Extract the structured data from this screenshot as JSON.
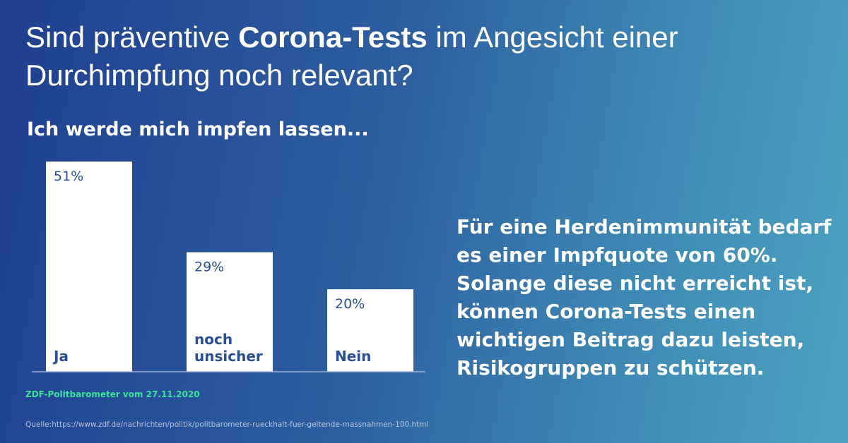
{
  "headline": {
    "part1": "Sind präventive ",
    "bold": "Corona-Tests",
    "part2": " im Angesicht einer Durchimpfung noch relevant?"
  },
  "colors": {
    "bar": "#ffffff",
    "bar_text": "#2a4f92",
    "baseline": "#9fb2d6",
    "source_text": "#3fe39a"
  },
  "chart_data": {
    "type": "bar",
    "title": "Ich werde mich impfen lassen...",
    "categories": [
      "Ja",
      "noch unsicher",
      "Nein"
    ],
    "values": [
      51,
      29,
      20
    ],
    "value_labels": [
      "51%",
      "29%",
      "20%"
    ],
    "ylim": [
      0,
      51
    ],
    "xlabel": "",
    "ylabel": "",
    "grid": false,
    "legend": "none"
  },
  "info_text": "Für eine Herdenimmunität bedarf es einer Impfquote von 60%. Solange diese nicht erreicht ist, können Corona-Tests einen wichtigen Beitrag dazu leisten, Risikogruppen zu schützen.",
  "source": "ZDF-Politbarometer vom 27.11.2020",
  "url": "Quelle:https://www.zdf.de/nachrichten/politik/politbarometer-rueckhalt-fuer-geltende-massnahmen-100.html"
}
